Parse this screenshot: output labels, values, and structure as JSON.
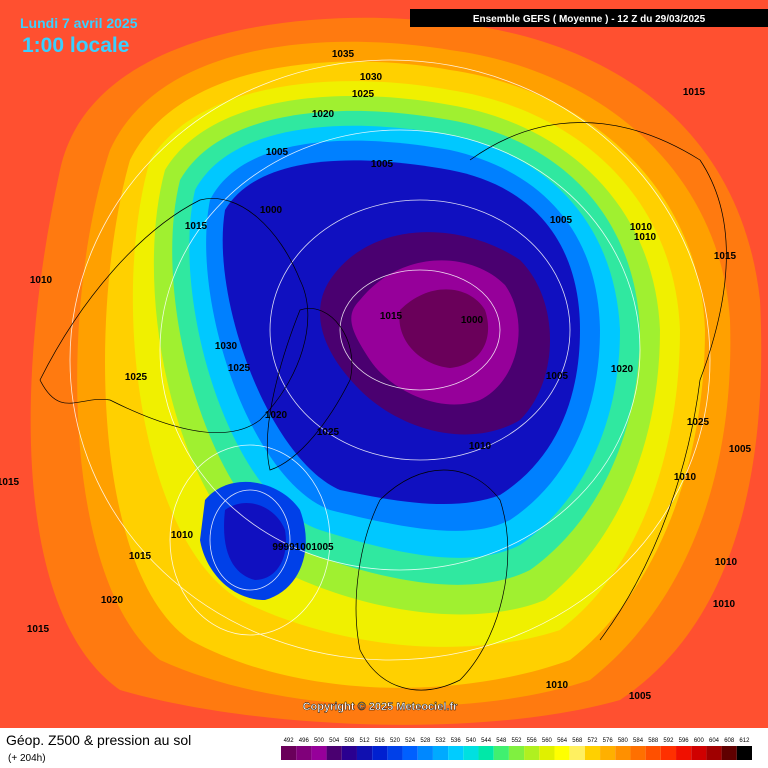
{
  "header": {
    "date": "Lundi 7 avril 2025",
    "time": "1:00 locale",
    "run": "Ensemble GEFS  ( Moyenne )  -  12 Z du 29/03/2025"
  },
  "copyright": "Copyright © 2025 Meteociel.fr",
  "footer": {
    "title": "Géop. Z500 & pression au sol",
    "lead": "(+ 204h)"
  },
  "isobar_labels": [
    "1035",
    "1030",
    "1025",
    "1020",
    "1005",
    "1005",
    "1000",
    "1015",
    "1010",
    "1015",
    "1000",
    "1030",
    "1025",
    "1025",
    "1020",
    "1025",
    "1005",
    "1010",
    "1005",
    "1010",
    "1010",
    "1015",
    "1020",
    "1025",
    "1005",
    "1010",
    "1015",
    "1010",
    "99991001005",
    "1015",
    "1020",
    "1015",
    "1010",
    "1005",
    "1010",
    "1010",
    "1015"
  ],
  "colorbar": {
    "levels": [
      492,
      496,
      500,
      504,
      508,
      512,
      516,
      520,
      524,
      528,
      532,
      536,
      540,
      544,
      548,
      552,
      556,
      560,
      564,
      568,
      572,
      576,
      580,
      584,
      588,
      592,
      596,
      600,
      604,
      608,
      612
    ],
    "colors": [
      "#6a005a",
      "#80007a",
      "#96009a",
      "#4a0070",
      "#2a0090",
      "#1010b0",
      "#0020d0",
      "#0040e8",
      "#0060ff",
      "#0088ff",
      "#00aaff",
      "#00ccff",
      "#00e0e0",
      "#00e8a8",
      "#40f070",
      "#80f040",
      "#b0f020",
      "#e0f000",
      "#ffff00",
      "#fff060",
      "#ffd000",
      "#ffb000",
      "#ff9000",
      "#ff7000",
      "#ff5000",
      "#ff3000",
      "#f01000",
      "#d00000",
      "#a00000",
      "#600000",
      "#000000"
    ]
  }
}
